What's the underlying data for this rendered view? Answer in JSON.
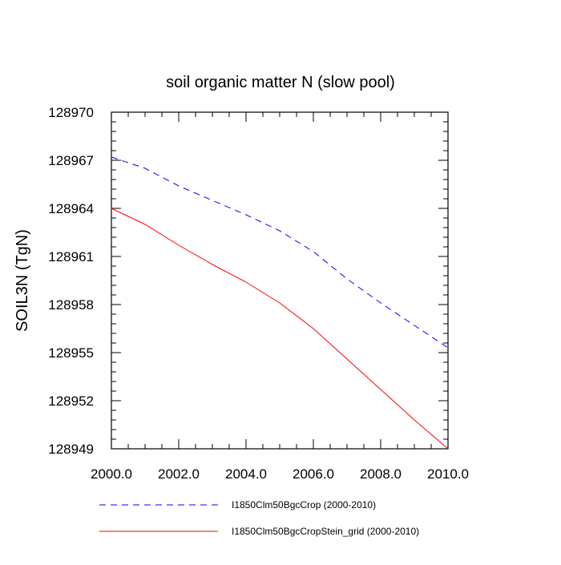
{
  "chart_data": {
    "type": "line",
    "title": "soil organic matter N (slow pool)",
    "xlabel": "",
    "ylabel": "SOIL3N  (TgN)",
    "xlim": [
      2000,
      2010
    ],
    "ylim": [
      128949,
      128970
    ],
    "x_ticks": [
      "2000.0",
      "2002.0",
      "2004.0",
      "2006.0",
      "2008.0",
      "2010.0"
    ],
    "y_ticks": [
      "128949",
      "128952",
      "128955",
      "128958",
      "128961",
      "128964",
      "128967",
      "128970"
    ],
    "grid": false,
    "legend_position": "bottom",
    "x": [
      2000,
      2001,
      2002,
      2003,
      2004,
      2005,
      2006,
      2007,
      2008,
      2009,
      2010
    ],
    "series": [
      {
        "name": "I1850Clm50BgcCrop (2000-2010)",
        "color": "#0000ff",
        "dash": "dashed",
        "values": [
          128967.2,
          128966.5,
          128965.4,
          128964.5,
          128963.6,
          128962.6,
          128961.3,
          128959.6,
          128958.1,
          128956.7,
          128955.3
        ]
      },
      {
        "name": "I1850Clm50BgcCropStein_grid (2000-2010)",
        "color": "#ff0000",
        "dash": "solid",
        "values": [
          128964.0,
          128963.0,
          128961.7,
          128960.5,
          128959.4,
          128958.1,
          128956.5,
          128954.6,
          128952.7,
          128950.8,
          128949.0
        ]
      }
    ]
  }
}
